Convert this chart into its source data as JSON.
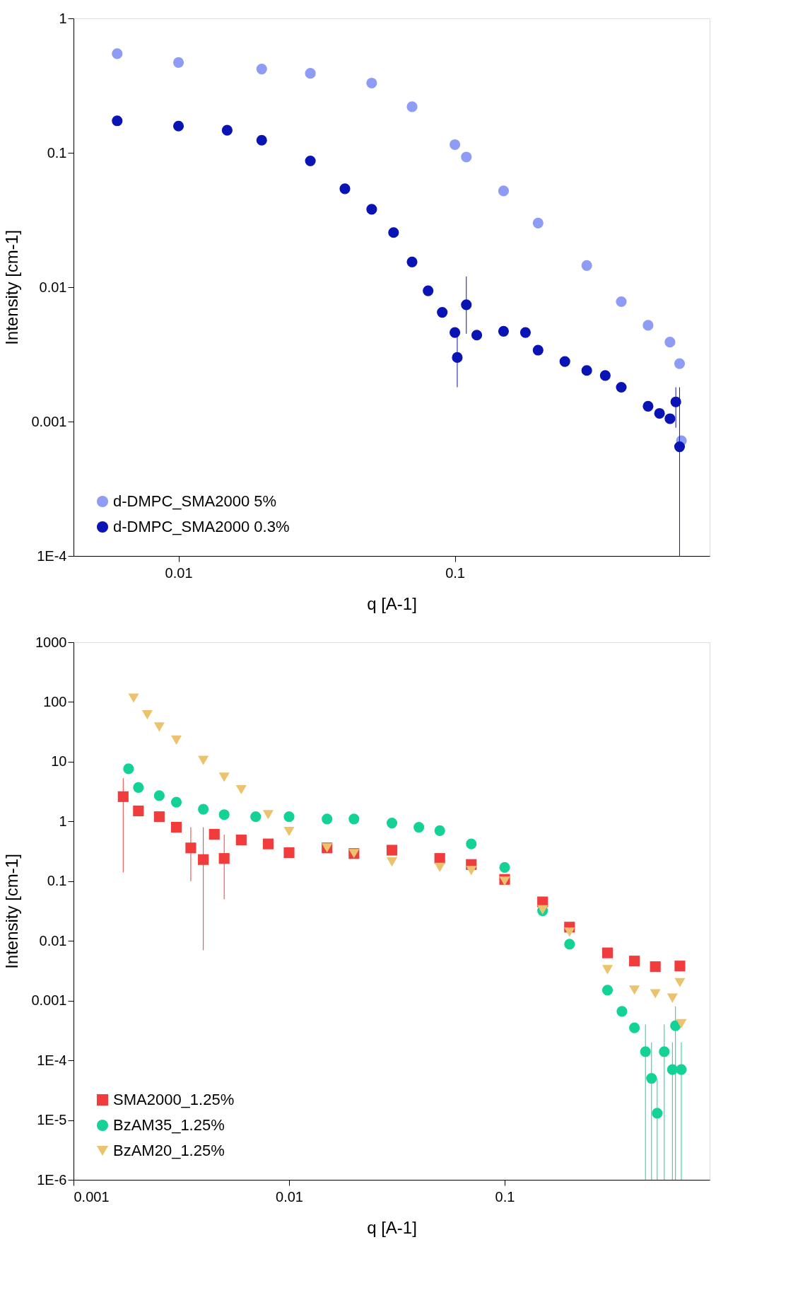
{
  "chart_data": [
    {
      "type": "scatter",
      "xlabel": "q [A-1]",
      "ylabel": "Intensity [cm-1]",
      "log": "xy",
      "grid": false,
      "legend": "bottom left",
      "xlim": [
        0.00417,
        0.835
      ],
      "ylim": [
        0.0001,
        1
      ],
      "xticks": [
        0.01,
        0.1
      ],
      "yticks": [
        1,
        0.1,
        0.01,
        0.001,
        {
          "value": 0.0001,
          "label": "1E-4"
        }
      ],
      "series": [
        {
          "name": "d-DMPC_SMA2000 5%",
          "color": "#8f9cf5",
          "marker": "circle",
          "x": [
            0.006,
            0.01,
            0.02,
            0.03,
            0.05,
            0.07,
            0.1,
            0.11,
            0.15,
            0.2,
            0.3,
            0.4,
            0.5,
            0.6,
            0.65,
            0.66
          ],
          "values": [
            0.546,
            0.47,
            0.42,
            0.39,
            0.33,
            0.22,
            0.115,
            0.093,
            0.052,
            0.03,
            0.0145,
            0.0078,
            0.0052,
            0.0039,
            0.0027,
            0.00072
          ]
        },
        {
          "name": "d-DMPC_SMA2000 0.3%",
          "color": "#0a14b4",
          "marker": "circle",
          "x": [
            0.006,
            0.01,
            0.015,
            0.02,
            0.03,
            0.04,
            0.05,
            0.06,
            0.07,
            0.08,
            0.09,
            0.1,
            0.102,
            0.11,
            0.12,
            0.15,
            0.18,
            0.2,
            0.25,
            0.3,
            0.35,
            0.4,
            0.5,
            0.55,
            0.6,
            0.63,
            0.65
          ],
          "values": [
            0.173,
            0.158,
            0.147,
            0.124,
            0.087,
            0.054,
            0.038,
            0.0255,
            0.0154,
            0.0094,
            0.0065,
            0.0046,
            0.003,
            0.0074,
            0.0044,
            0.0047,
            0.0046,
            0.0034,
            0.0028,
            0.0024,
            0.0022,
            0.0018,
            0.0013,
            0.00115,
            0.00105,
            0.0014,
            0.00065
          ],
          "errors": [
            null,
            null,
            null,
            null,
            null,
            null,
            null,
            null,
            null,
            null,
            null,
            null,
            [
              0.0018,
              0.0045
            ],
            [
              0.0045,
              0.012
            ],
            null,
            null,
            null,
            null,
            null,
            null,
            null,
            null,
            null,
            null,
            null,
            [
              0.0009,
              0.0018
            ],
            [
              0.0001,
              0.0018
            ]
          ]
        }
      ]
    },
    {
      "type": "scatter",
      "xlabel": "q [A-1]",
      "ylabel": "Intensity [cm-1]",
      "log": "xy",
      "grid": false,
      "legend": "bottom left",
      "xlim": [
        0.001,
        0.893
      ],
      "ylim": [
        1e-06,
        1000
      ],
      "xticks": [
        0.001,
        0.01,
        0.1
      ],
      "yticks": [
        1000,
        100,
        10,
        1,
        0.1,
        0.01,
        0.001,
        {
          "value": 0.0001,
          "label": "1E-4"
        },
        {
          "value": 1e-05,
          "label": "1E-5"
        },
        {
          "value": 1e-06,
          "label": "1E-6"
        }
      ],
      "series": [
        {
          "name": "SMA2000_1.25%",
          "color": "#f03c3c",
          "marker": "square",
          "x": [
            0.0017,
            0.002,
            0.0025,
            0.003,
            0.0035,
            0.004,
            0.0045,
            0.005,
            0.006,
            0.008,
            0.01,
            0.015,
            0.02,
            0.03,
            0.05,
            0.07,
            0.1,
            0.15,
            0.2,
            0.3,
            0.4,
            0.5,
            0.65
          ],
          "values": [
            2.6,
            1.5,
            1.2,
            0.8,
            0.36,
            0.23,
            0.61,
            0.24,
            0.49,
            0.42,
            0.3,
            0.36,
            0.29,
            0.33,
            0.24,
            0.19,
            0.107,
            0.045,
            0.017,
            0.0063,
            0.0046,
            0.0037,
            0.0038
          ],
          "errors": [
            [
              0.14,
              5.3
            ],
            null,
            null,
            null,
            [
              0.1,
              0.8
            ],
            [
              0.007,
              0.8
            ],
            null,
            [
              0.05,
              0.6
            ],
            null,
            null,
            null,
            null,
            null,
            null,
            null,
            null,
            null,
            null,
            null,
            null,
            null,
            null,
            null
          ]
        },
        {
          "name": "BzAM35_1.25%",
          "color": "#14d296",
          "marker": "circle",
          "x": [
            0.0018,
            0.002,
            0.0025,
            0.003,
            0.004,
            0.005,
            0.007,
            0.01,
            0.015,
            0.02,
            0.03,
            0.04,
            0.05,
            0.07,
            0.1,
            0.15,
            0.2,
            0.3,
            0.35,
            0.4,
            0.45,
            0.48,
            0.51,
            0.55,
            0.6,
            0.62,
            0.66
          ],
          "values": [
            7.6,
            3.7,
            2.7,
            2.1,
            1.6,
            1.3,
            1.2,
            1.2,
            1.1,
            1.1,
            0.94,
            0.8,
            0.7,
            0.42,
            0.17,
            0.032,
            0.0088,
            0.0015,
            0.00066,
            0.00035,
            0.00014,
            5e-05,
            1.3e-05,
            0.00014,
            7e-05,
            0.00038,
            7e-05
          ],
          "errors": [
            null,
            null,
            null,
            null,
            null,
            null,
            null,
            null,
            null,
            null,
            null,
            null,
            null,
            null,
            null,
            null,
            null,
            null,
            null,
            null,
            [
              1e-06,
              0.0004
            ],
            [
              1e-06,
              0.0002
            ],
            [
              1e-06,
              5e-05
            ],
            [
              1e-06,
              0.0004
            ],
            [
              1e-06,
              0.0002
            ],
            [
              1e-06,
              0.0008
            ],
            [
              1e-06,
              0.0002
            ]
          ]
        },
        {
          "name": "BzAM20_1.25%",
          "color": "#ebc36e",
          "marker": "triangle",
          "x": [
            0.0019,
            0.0022,
            0.0025,
            0.003,
            0.004,
            0.005,
            0.006,
            0.008,
            0.01,
            0.015,
            0.02,
            0.03,
            0.05,
            0.07,
            0.1,
            0.15,
            0.2,
            0.3,
            0.4,
            0.5,
            0.6,
            0.65,
            0.66
          ],
          "values": [
            116,
            61,
            38,
            23,
            10.5,
            5.5,
            3.4,
            1.3,
            0.68,
            0.36,
            0.29,
            0.21,
            0.17,
            0.15,
            0.1,
            0.033,
            0.014,
            0.0033,
            0.0015,
            0.0013,
            0.0011,
            0.002,
            0.00041
          ]
        }
      ]
    }
  ]
}
